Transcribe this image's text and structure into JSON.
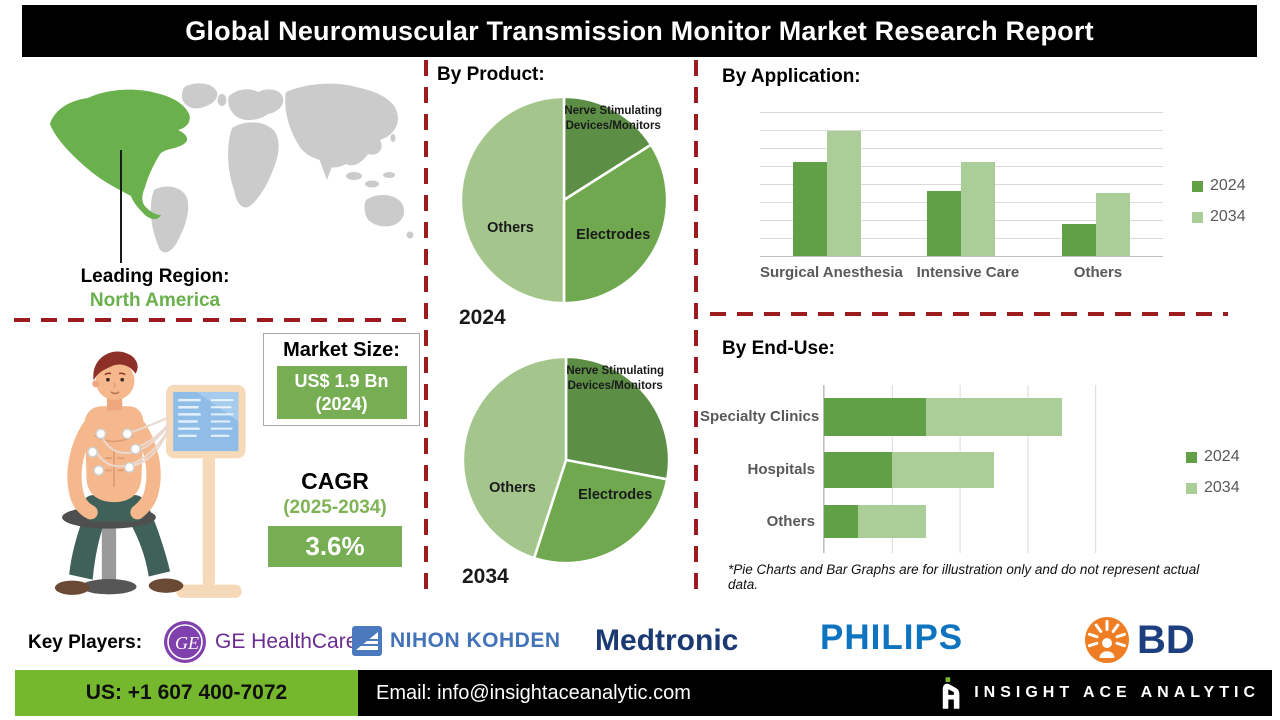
{
  "title": "Global Neuromuscular Transmission Monitor Market Research Report",
  "leading_region": {
    "label": "Leading Region:",
    "value": "North America"
  },
  "market_size": {
    "label": "Market Size:",
    "value": "US$ 1.9 Bn",
    "year": "(2024)"
  },
  "cagr": {
    "label": "CAGR",
    "period": "(2025-2034)",
    "value": "3.6%"
  },
  "sections": {
    "by_product": "By Product:",
    "by_application": "By Application:",
    "by_end_use": "By End-Use:"
  },
  "disclaimer": "*Pie Charts and Bar Graphs are for illustration only and do not represent actual data.",
  "key_players": {
    "label": "Key Players:",
    "players": [
      {
        "name": "GE HealthCare"
      },
      {
        "name": "NIHON KOHDEN"
      },
      {
        "name": "Medtronic"
      },
      {
        "name": "PHILIPS"
      },
      {
        "name": "BD"
      }
    ]
  },
  "footer": {
    "phone": "US: +1 607 400-7072",
    "email": "Email: info@insightaceanalytic.com",
    "brand": "INSIGHT ACE ANALYTIC"
  },
  "colors": {
    "pie_dark": "#5d8e46",
    "pie_mid": "#70a850",
    "pie_light": "#a4c58c",
    "bar_2024": "#61a046",
    "bar_2034": "#abcd98",
    "accent_red": "#9b1b1e",
    "footer_green": "#76b82d",
    "region_green": "#6ab04c",
    "pill_green": "#77ae53"
  },
  "chart_data": [
    {
      "type": "pie",
      "title": "By Product:",
      "year": "2024",
      "labels": [
        "Nerve Stimulating Devices/Monitors",
        "Electrodes",
        "Others"
      ],
      "values": [
        16,
        34,
        50
      ]
    },
    {
      "type": "pie",
      "title": "By Product:",
      "year": "2034",
      "labels": [
        "Nerve Stimulating Devices/Monitors",
        "Electrodes",
        "Others"
      ],
      "values": [
        28,
        27,
        45
      ]
    },
    {
      "type": "bar",
      "title": "By Application:",
      "categories": [
        "Surgical Anesthesia",
        "Intensive Care",
        "Others"
      ],
      "series": [
        {
          "name": "2024",
          "values": [
            65,
            45,
            22
          ]
        },
        {
          "name": "2034",
          "values": [
            87,
            65,
            44
          ]
        }
      ],
      "ylim": [
        0,
        100
      ],
      "grid": true,
      "legend_position": "right"
    },
    {
      "type": "bar",
      "orientation": "horizontal-stacked",
      "title": "By End-Use:",
      "categories": [
        "Specialty Clinics",
        "Hospitals",
        "Others"
      ],
      "series": [
        {
          "name": "2024",
          "values": [
            30,
            20,
            10
          ]
        },
        {
          "name": "2034",
          "values": [
            40,
            30,
            20
          ]
        }
      ],
      "xlim": [
        0,
        100
      ],
      "grid": true,
      "legend_position": "right"
    }
  ]
}
